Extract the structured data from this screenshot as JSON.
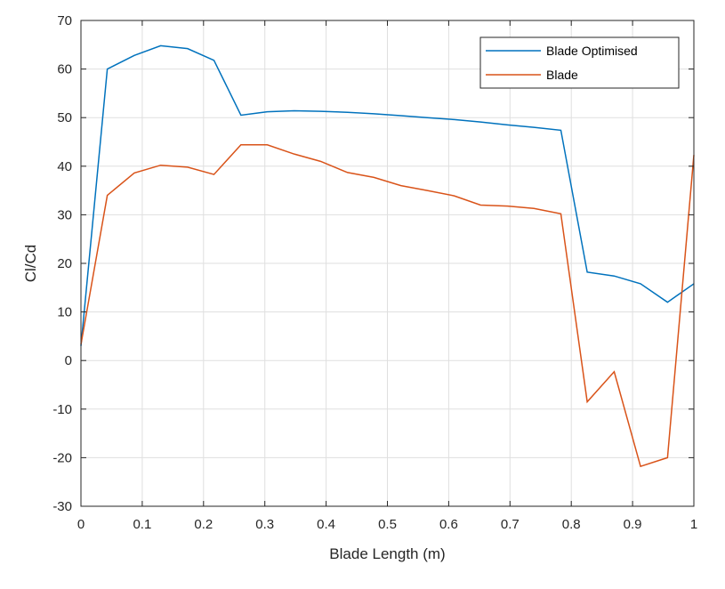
{
  "chart_data": {
    "type": "line",
    "title": "",
    "xlabel": "Blade Length (m)",
    "ylabel": "Cl/Cd",
    "xlim": [
      0,
      1
    ],
    "ylim": [
      -30,
      70
    ],
    "grid": true,
    "legend_location": "top-right",
    "x_ticks": [
      0,
      0.1,
      0.2,
      0.3,
      0.4,
      0.5,
      0.6,
      0.7,
      0.8,
      0.9,
      1
    ],
    "x_tick_labels": [
      "0",
      "0.1",
      "0.2",
      "0.3",
      "0.4",
      "0.5",
      "0.6",
      "0.7",
      "0.8",
      "0.9",
      "1"
    ],
    "y_ticks": [
      -30,
      -20,
      -10,
      0,
      10,
      20,
      30,
      40,
      50,
      60,
      70
    ],
    "y_tick_labels": [
      "-30",
      "-20",
      "-10",
      "0",
      "10",
      "20",
      "30",
      "40",
      "50",
      "60",
      "70"
    ],
    "series": [
      {
        "name": "Blade Optimised",
        "color": "#0072BD",
        "x": [
          0,
          0.043,
          0.087,
          0.13,
          0.174,
          0.217,
          0.261,
          0.304,
          0.348,
          0.391,
          0.435,
          0.478,
          0.522,
          0.565,
          0.609,
          0.652,
          0.696,
          0.739,
          0.783,
          0.826,
          0.87,
          0.913,
          0.957,
          1
        ],
        "y": [
          3,
          60,
          62.8,
          64.8,
          64.2,
          61.8,
          50.5,
          51.2,
          51.4,
          51.3,
          51.1,
          50.8,
          50.4,
          50,
          49.6,
          49.1,
          48.5,
          48,
          47.4,
          18.2,
          17.4,
          15.8,
          12,
          15.8
        ]
      },
      {
        "name": "Blade",
        "color": "#D95319",
        "x": [
          0,
          0.043,
          0.087,
          0.13,
          0.174,
          0.217,
          0.261,
          0.304,
          0.348,
          0.391,
          0.435,
          0.478,
          0.522,
          0.565,
          0.609,
          0.652,
          0.696,
          0.739,
          0.783,
          0.826,
          0.87,
          0.913,
          0.957,
          1
        ],
        "y": [
          3.3,
          34,
          38.6,
          40.2,
          39.8,
          38.3,
          44.4,
          44.4,
          42.5,
          41,
          38.7,
          37.7,
          36,
          35,
          33.9,
          32,
          31.8,
          31.3,
          30.2,
          -8.5,
          -2.3,
          -21.8,
          -20,
          42.3
        ]
      }
    ]
  }
}
